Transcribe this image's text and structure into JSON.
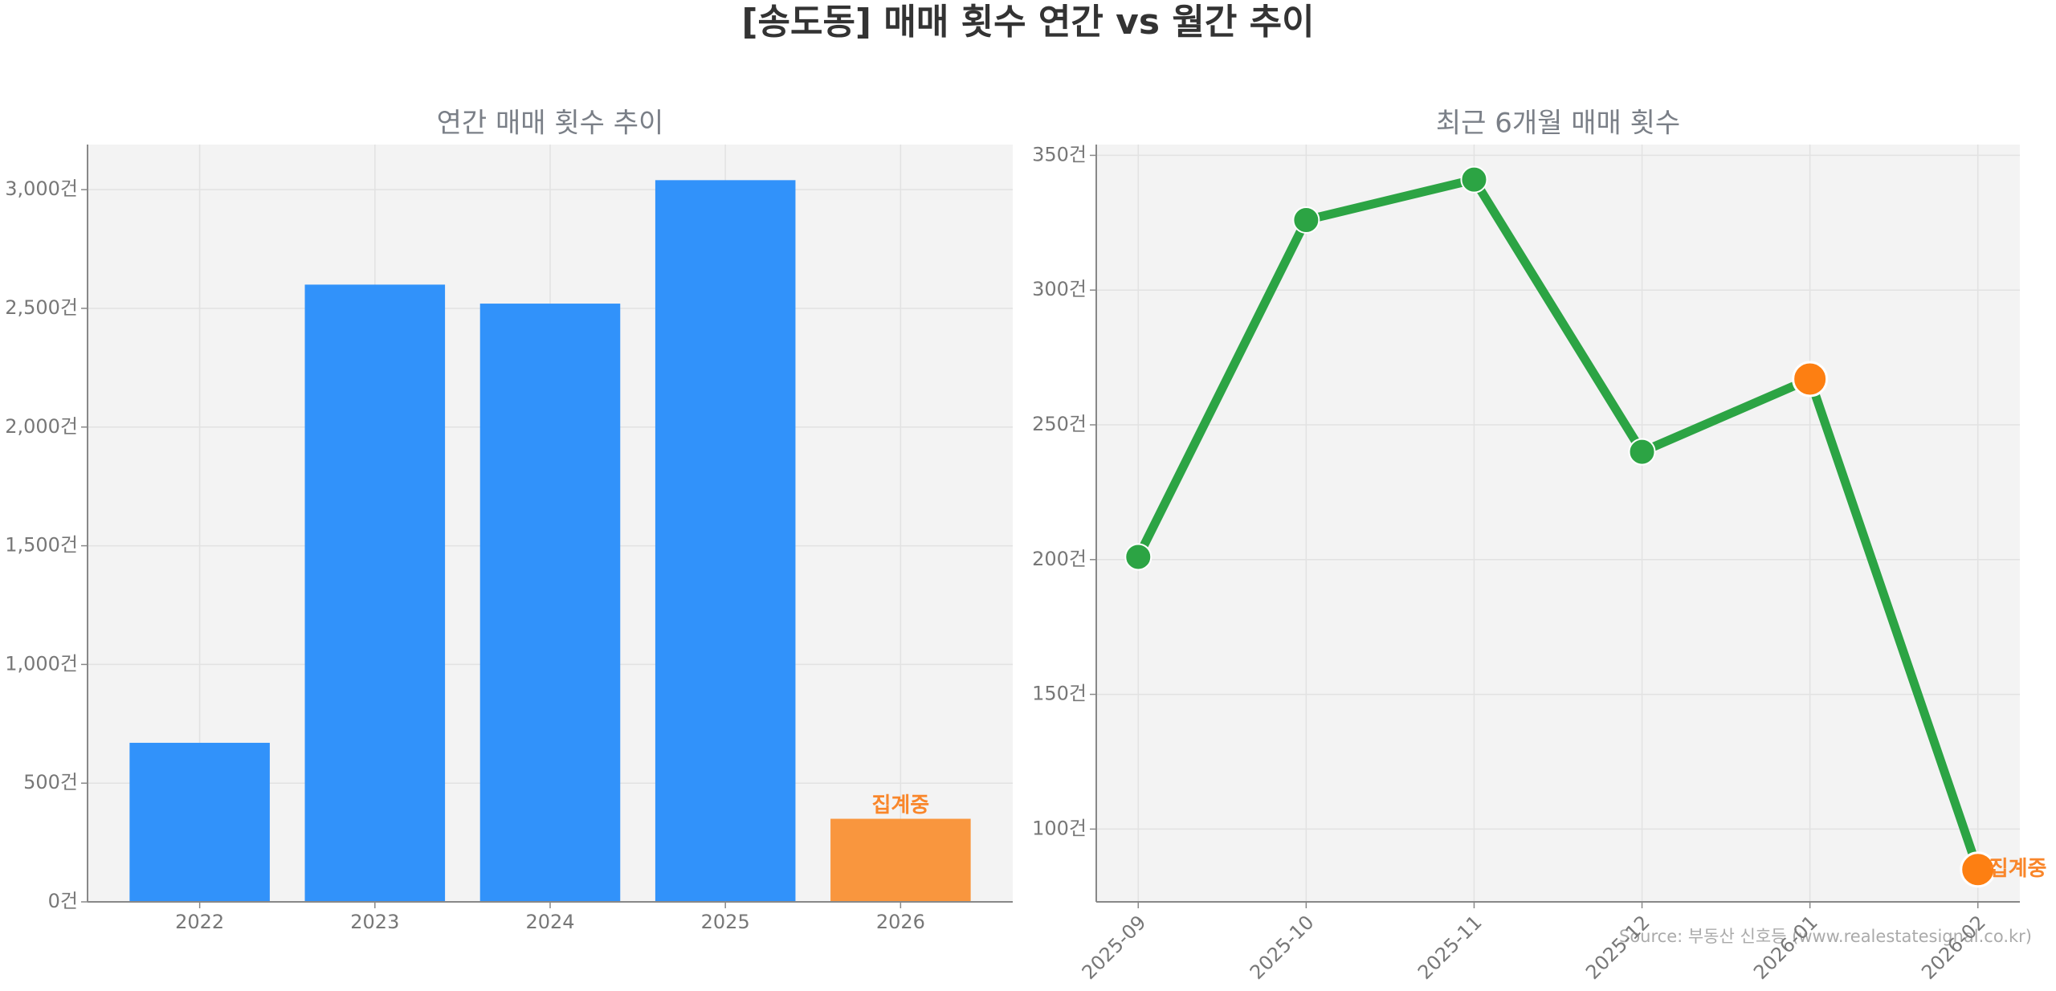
{
  "title": "[송도동] 매매 횟수 연간 vs 월간 추이",
  "source": "Source: 부동산 신호등 (www.realestatesignal.co.kr)",
  "chart_data": [
    {
      "type": "bar",
      "title": "연간 매매 횟수 추이",
      "categories": [
        "2022",
        "2023",
        "2024",
        "2025",
        "2026"
      ],
      "values": [
        670,
        2600,
        2520,
        3040,
        350
      ],
      "colors": [
        "#3192fa",
        "#3192fa",
        "#3192fa",
        "#3192fa",
        "#f9963e"
      ],
      "ylim": [
        0,
        3190
      ],
      "yticks": [
        {
          "value": 0,
          "label": "0건"
        },
        {
          "value": 500,
          "label": "500건"
        },
        {
          "value": 1000,
          "label": "1,000건"
        },
        {
          "value": 1500,
          "label": "1,500건"
        },
        {
          "value": 2000,
          "label": "2,000건"
        },
        {
          "value": 2500,
          "label": "2,500건"
        },
        {
          "value": 3000,
          "label": "3,000건"
        }
      ],
      "grid": true,
      "annotations": [
        {
          "text": "집계중",
          "category": "2026",
          "color": "#f9862a"
        }
      ]
    },
    {
      "type": "line",
      "title": "최근 6개월 매매 횟수",
      "categories": [
        "2025-09",
        "2025-10",
        "2025-11",
        "2025-12",
        "2026-01",
        "2026-02"
      ],
      "values": [
        201,
        326,
        341,
        240,
        267,
        85
      ],
      "color": "#2ca444",
      "point_colors": [
        "#2ca444",
        "#2ca444",
        "#2ca444",
        "#2ca444",
        "#fd7f12",
        "#fd7f12"
      ],
      "ylim": [
        73,
        354
      ],
      "yticks": [
        {
          "value": 100,
          "label": "100건"
        },
        {
          "value": 150,
          "label": "150건"
        },
        {
          "value": 200,
          "label": "200건"
        },
        {
          "value": 250,
          "label": "250건"
        },
        {
          "value": 300,
          "label": "300건"
        },
        {
          "value": 350,
          "label": "350건"
        }
      ],
      "grid": true,
      "annotations": [
        {
          "text": "집계중",
          "category": "2026-02",
          "color": "#f9862a"
        }
      ]
    }
  ]
}
